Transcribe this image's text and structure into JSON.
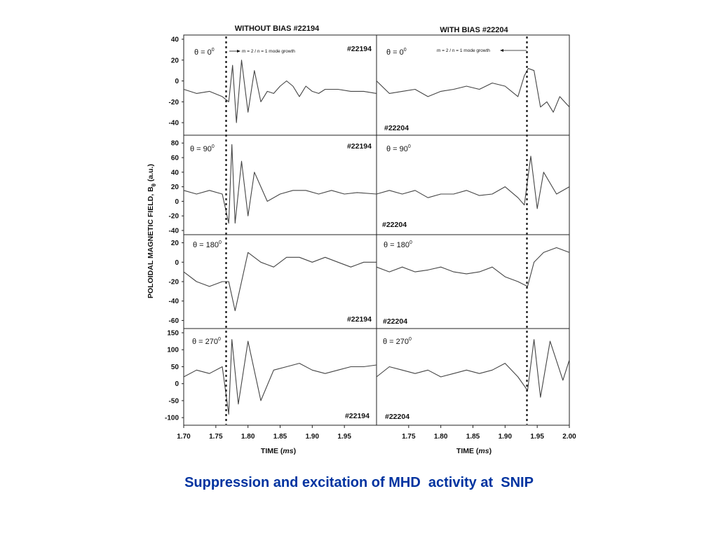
{
  "caption": "Suppression and excitation of MHD  activity at  SNIP",
  "colors": {
    "caption": "#0033a0",
    "trace": "#444444",
    "marker": "#111111"
  },
  "chart_data": {
    "type": "line",
    "panel_titles": [
      "WITHOUT BIAS #22194",
      "WITH BIAS #22204"
    ],
    "ylabel_main": "POLOIDAL MAGNETIC FIELD, B",
    "ylabel_sub": "θ",
    "ylabel_unit": " (a.u.)",
    "xlabel_main": "TIME (",
    "xlabel_italic": "ms",
    "xlabel_end": ")",
    "x_ticks_left": [
      "1.70",
      "1.75",
      "1.80",
      "1.85",
      "1.90",
      "1.95"
    ],
    "x_ticks_right": [
      "1.75",
      "1.80",
      "1.85",
      "1.90",
      "1.95",
      "2.00"
    ],
    "xlim_left": [
      1.7,
      2.0
    ],
    "xlim_right": [
      1.7,
      2.0
    ],
    "grid": false,
    "legend": "none",
    "marker_times": {
      "left": 1.766,
      "right": 1.934
    },
    "annotations": {
      "left": {
        "text": "m = 2 / n = 1 mode growth",
        "arrow": "right"
      },
      "right": {
        "text": "m = 2 / n = 1 mode growth",
        "arrow": "left"
      }
    },
    "rows": [
      {
        "angle": "θ = 0",
        "angle_sup": "0",
        "ylim": [
          -48,
          40
        ],
        "yticks": [
          "40",
          "20",
          "0",
          "-20",
          "-40"
        ],
        "ytick_values": [
          40,
          20,
          0,
          -20,
          -40
        ],
        "shot_left": "#22194",
        "shot_left_pos": "top-right",
        "shot_right": "#22204",
        "shot_right_pos": "bottom-left",
        "left": {
          "t": [
            1.7,
            1.72,
            1.74,
            1.76,
            1.77,
            1.776,
            1.782,
            1.79,
            1.8,
            1.81,
            1.82,
            1.83,
            1.84,
            1.85,
            1.86,
            1.87,
            1.88,
            1.89,
            1.9,
            1.91,
            1.92,
            1.94,
            1.96,
            1.98,
            2.0
          ],
          "y": [
            -8,
            -12,
            -10,
            -15,
            -20,
            15,
            -40,
            20,
            -30,
            10,
            -20,
            -10,
            -12,
            -5,
            0,
            -5,
            -15,
            -5,
            -10,
            -12,
            -8,
            -8,
            -10,
            -10,
            -12
          ]
        },
        "right": {
          "t": [
            1.7,
            1.72,
            1.74,
            1.76,
            1.78,
            1.8,
            1.82,
            1.84,
            1.86,
            1.88,
            1.9,
            1.92,
            1.93,
            1.936,
            1.945,
            1.955,
            1.965,
            1.975,
            1.985,
            2.0
          ],
          "y": [
            0,
            -12,
            -10,
            -8,
            -15,
            -10,
            -8,
            -5,
            -8,
            -2,
            -5,
            -15,
            5,
            12,
            10,
            -25,
            -20,
            -30,
            -15,
            -25
          ]
        }
      },
      {
        "angle": "θ = 90",
        "angle_sup": "0",
        "ylim": [
          -40,
          85
        ],
        "yticks": [
          "80",
          "60",
          "40",
          "20",
          "0",
          "-20",
          "-40"
        ],
        "ytick_values": [
          80,
          60,
          40,
          20,
          0,
          -20,
          -40
        ],
        "shot_left": "#22194",
        "shot_left_pos": "top-right",
        "shot_right": "#22204",
        "shot_right_pos": "bottom-left",
        "left": {
          "t": [
            1.7,
            1.72,
            1.74,
            1.76,
            1.77,
            1.775,
            1.78,
            1.79,
            1.8,
            1.81,
            1.83,
            1.85,
            1.87,
            1.89,
            1.91,
            1.93,
            1.95,
            1.97,
            2.0
          ],
          "y": [
            15,
            10,
            15,
            10,
            -30,
            78,
            -30,
            55,
            -20,
            40,
            0,
            10,
            15,
            15,
            10,
            15,
            10,
            12,
            10
          ]
        },
        "right": {
          "t": [
            1.7,
            1.72,
            1.74,
            1.76,
            1.78,
            1.8,
            1.82,
            1.84,
            1.86,
            1.88,
            1.9,
            1.92,
            1.93,
            1.94,
            1.95,
            1.96,
            1.98,
            2.0
          ],
          "y": [
            10,
            15,
            10,
            15,
            5,
            10,
            10,
            15,
            8,
            10,
            20,
            5,
            -5,
            62,
            -10,
            40,
            10,
            20
          ]
        }
      },
      {
        "angle": "θ = 180",
        "angle_sup": "0",
        "ylim": [
          -64,
          24
        ],
        "yticks": [
          "20",
          "0",
          "-20",
          "-40",
          "-60"
        ],
        "ytick_values": [
          20,
          0,
          -20,
          -40,
          -60
        ],
        "shot_left": "#22194",
        "shot_left_pos": "bottom-right",
        "shot_right": "#22204",
        "shot_right_pos": "bottom-left",
        "left": {
          "t": [
            1.7,
            1.72,
            1.74,
            1.76,
            1.77,
            1.78,
            1.8,
            1.82,
            1.84,
            1.86,
            1.88,
            1.9,
            1.92,
            1.94,
            1.96,
            1.98,
            2.0
          ],
          "y": [
            -10,
            -20,
            -25,
            -20,
            -20,
            -50,
            10,
            0,
            -5,
            5,
            5,
            0,
            5,
            0,
            -5,
            0,
            0
          ]
        },
        "right": {
          "t": [
            1.7,
            1.72,
            1.74,
            1.76,
            1.78,
            1.8,
            1.82,
            1.84,
            1.86,
            1.88,
            1.9,
            1.92,
            1.935,
            1.945,
            1.96,
            1.98,
            2.0
          ],
          "y": [
            -5,
            -10,
            -5,
            -10,
            -8,
            -5,
            -10,
            -12,
            -10,
            -5,
            -15,
            -20,
            -25,
            0,
            10,
            15,
            10
          ]
        }
      },
      {
        "angle": "θ = 270",
        "angle_sup": "0",
        "ylim": [
          -110,
          150
        ],
        "yticks": [
          "150",
          "100",
          "50",
          "0",
          "-50",
          "-100"
        ],
        "ytick_values": [
          150,
          100,
          50,
          0,
          -50,
          -100
        ],
        "shot_left": "#22194",
        "shot_left_pos": "bottom-right",
        "shot_right": "#22204",
        "shot_right_pos": "bottom-left",
        "left": {
          "t": [
            1.7,
            1.72,
            1.74,
            1.76,
            1.77,
            1.775,
            1.785,
            1.8,
            1.82,
            1.84,
            1.86,
            1.88,
            1.9,
            1.92,
            1.94,
            1.96,
            1.98,
            2.0
          ],
          "y": [
            20,
            40,
            30,
            50,
            -90,
            130,
            -60,
            125,
            -50,
            40,
            50,
            60,
            40,
            30,
            40,
            50,
            50,
            55
          ]
        },
        "right": {
          "t": [
            1.7,
            1.72,
            1.74,
            1.76,
            1.78,
            1.8,
            1.82,
            1.84,
            1.86,
            1.88,
            1.9,
            1.92,
            1.935,
            1.945,
            1.955,
            1.97,
            1.99,
            2.0
          ],
          "y": [
            20,
            50,
            40,
            30,
            40,
            20,
            30,
            40,
            30,
            40,
            60,
            20,
            -20,
            130,
            -40,
            125,
            10,
            70
          ]
        }
      }
    ]
  }
}
